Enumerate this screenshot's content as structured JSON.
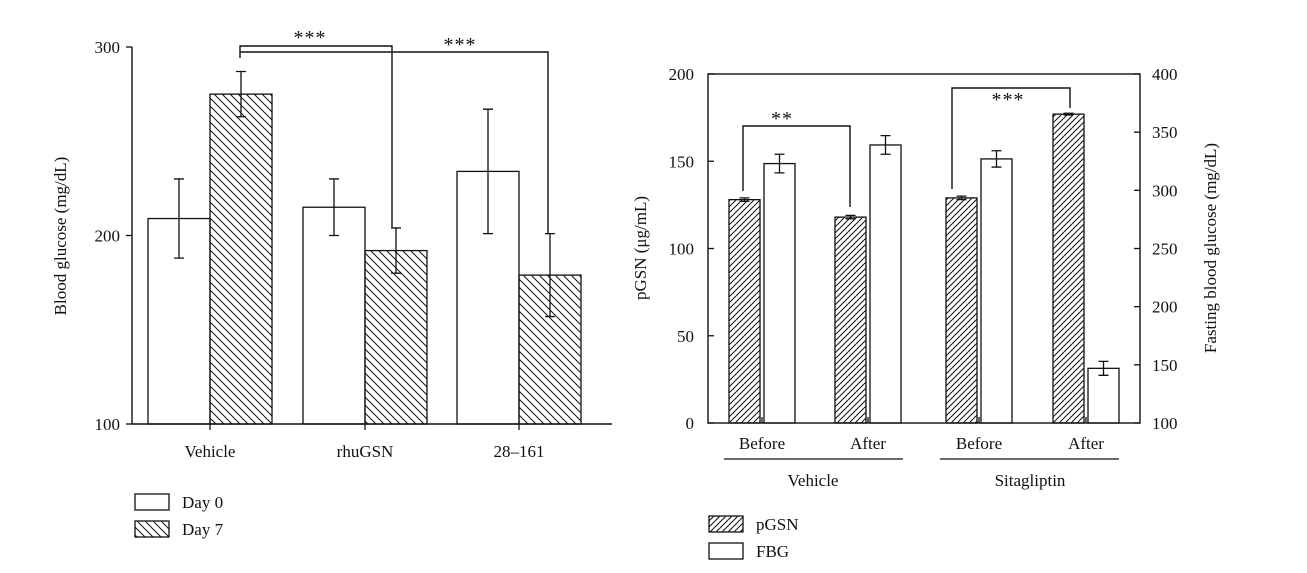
{
  "chart_data": [
    {
      "type": "bar",
      "categories": [
        "Vehicle",
        "rhuGSN",
        "28–161"
      ],
      "series": [
        {
          "name": "Day 0",
          "pattern": "open",
          "values": [
            209,
            215,
            234
          ],
          "errors": [
            21,
            15,
            33
          ]
        },
        {
          "name": "Day 7",
          "pattern": "hatch-back",
          "values": [
            275,
            192,
            179
          ],
          "errors": [
            12,
            12,
            22
          ]
        }
      ],
      "ylabel": "Blood glucose (mg/dL)",
      "ylim": [
        100,
        300
      ],
      "yticks": [
        "100",
        "200",
        "300"
      ],
      "significance": [
        {
          "label": "***",
          "from": "Vehicle Day 7",
          "to": "rhuGSN Day 7"
        },
        {
          "label": "***",
          "from": "Vehicle Day 7",
          "to": "28–161 Day 7"
        }
      ],
      "legend": {
        "placement": "below",
        "entries": [
          "Day 0",
          "Day 7"
        ]
      }
    },
    {
      "type": "bar",
      "groups": [
        {
          "label": "Vehicle",
          "subcategories": [
            "Before",
            "After"
          ]
        },
        {
          "label": "Sitagliptin",
          "subcategories": [
            "Before",
            "After"
          ]
        }
      ],
      "series": [
        {
          "name": "pGSN",
          "axis": "left",
          "pattern": "hatch-forward",
          "values": [
            128,
            118,
            129,
            177
          ],
          "errors": [
            1,
            1,
            1,
            0.5
          ]
        },
        {
          "name": "FBG",
          "axis": "right",
          "pattern": "open",
          "values": [
            323,
            339,
            327,
            147
          ],
          "errors": [
            8,
            8,
            7,
            6
          ]
        }
      ],
      "ylabel": "pGSN (μg/mL)",
      "ylim": [
        0,
        200
      ],
      "yticks": [
        "0",
        "50",
        "100",
        "150",
        "200"
      ],
      "y2label": "Fasting blood glucose (mg/dL)",
      "y2lim": [
        100,
        400
      ],
      "y2ticks": [
        "100",
        "150",
        "200",
        "250",
        "300",
        "350",
        "400"
      ],
      "significance": [
        {
          "label": "**",
          "from": "Vehicle Before pGSN",
          "to": "Vehicle After pGSN"
        },
        {
          "label": "***",
          "from": "Sitagliptin Before pGSN",
          "to": "Sitagliptin After pGSN"
        }
      ],
      "legend": {
        "placement": "below",
        "entries": [
          "pGSN",
          "FBG"
        ]
      }
    }
  ]
}
